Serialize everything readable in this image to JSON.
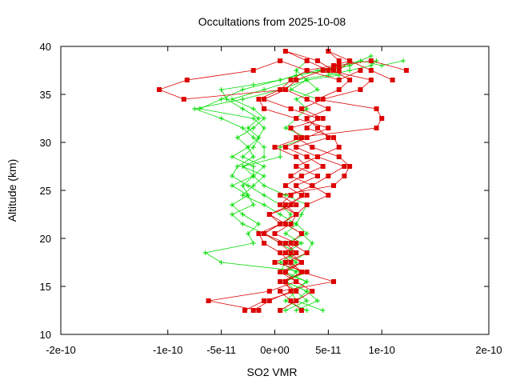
{
  "chart_data": {
    "type": "line",
    "title": "Occultations from 2025-10-08",
    "xlabel": "SO2 VMR",
    "ylabel": "Altitude (km)",
    "xlim": [
      -2e-10,
      2e-10
    ],
    "ylim": [
      10,
      40
    ],
    "xticks": [
      "-2e-10",
      "-1e-10",
      "-5e-11",
      "0e+00",
      "5e-11",
      "1e-10",
      "2e-10"
    ],
    "xtick_values": [
      -2e-10,
      -1e-10,
      -5e-11,
      0,
      5e-11,
      1e-10,
      2e-10
    ],
    "yticks": [
      "10",
      "15",
      "20",
      "25",
      "30",
      "35",
      "40"
    ],
    "ytick_values": [
      10,
      15,
      20,
      25,
      30,
      35,
      40
    ],
    "grid": false,
    "legend": "none",
    "series": [
      {
        "color": "#00dd00",
        "marker": "plus",
        "profiles": [
          {
            "x": [
              2e-11,
              4e-11,
              3e-11,
              1e-11,
              3e-11,
              -5e-11,
              -6.5e-11,
              -2e-11,
              -2.5e-11,
              -1.5e-11,
              -3e-11,
              -4e-11,
              -2.5e-11,
              -3e-11,
              -2e-11,
              -3e-11,
              5e-12,
              5e-12,
              3e-11,
              1e-11,
              2e-11,
              3e-11,
              2e-11,
              4e-11,
              3e-11,
              2e-11,
              3e-11,
              2e-11,
              3e-11,
              1.5e-11,
              4e-11
            ],
            "y": [
              12.5,
              13.5,
              14.5,
              15.5,
              16.5,
              17.5,
              18.5,
              19.5,
              20.5,
              21.5,
              22.5,
              23.5,
              24.5,
              25.5,
              26.5,
              27.5,
              28.5,
              29.5,
              30.5,
              31.5,
              32.5,
              33.5,
              34.5,
              35.5,
              36.5,
              37.5,
              38.5,
              37.5,
              36.5,
              35.5,
              34.5
            ]
          },
          {
            "x": [
              3e-11,
              1e-11,
              2e-11,
              3e-11,
              5e-12,
              1e-11,
              2e-11,
              5e-12,
              -1e-11,
              -3e-11,
              -4e-11,
              -2e-11,
              -2.5e-11,
              -4e-11,
              -2e-11,
              -2e-11,
              -4e-11,
              -2.5e-11,
              -1.5e-11,
              -1e-11,
              -2e-11,
              -7e-11,
              -5e-11,
              -3e-11,
              5e-12,
              4e-11,
              8e-11,
              1e-10,
              1.2e-10
            ],
            "y": [
              12.5,
              13.5,
              14.5,
              15.5,
              16.5,
              17.5,
              18.5,
              19.5,
              20.5,
              21.5,
              22.5,
              23.5,
              24.5,
              25.5,
              26.5,
              27.5,
              28.5,
              29.5,
              30.5,
              31.5,
              32.5,
              33.5,
              34.5,
              35.5,
              36.5,
              37.5,
              38.5,
              38.0,
              38.5
            ]
          },
          {
            "x": [
              4.5e-11,
              2e-11,
              3e-11,
              1e-11,
              2e-11,
              5e-12,
              2e-11,
              1e-11,
              3e-11,
              2e-11,
              5e-12,
              -1e-11,
              -3e-11,
              -2e-11,
              -1e-11,
              -3e-11,
              -1e-11,
              -1e-11,
              -2e-11,
              -3e-11,
              -5e-11,
              -7.5e-11,
              -3e-11,
              5e-12,
              3e-11,
              6e-11,
              4e-11,
              7e-11,
              9e-11
            ],
            "y": [
              12.5,
              13.5,
              14.5,
              15.5,
              16.5,
              17.5,
              18.5,
              19.5,
              20.5,
              21.5,
              22.5,
              23.5,
              24.5,
              25.5,
              26.5,
              27.5,
              28.5,
              29.5,
              30.5,
              31.5,
              32.5,
              33.5,
              34.5,
              35.5,
              36.5,
              37.0,
              37.5,
              38.0,
              39.0
            ]
          },
          {
            "x": [
              1e-11,
              3e-11,
              2e-11,
              1e-11,
              2.5e-11,
              1.5e-11,
              3e-11,
              3.5e-11,
              2.5e-11,
              1e-11,
              1.5e-11,
              5e-12,
              -1e-11,
              -2.5e-11,
              -4e-11,
              -3.5e-11,
              -2e-11,
              -2.5e-11,
              -3.5e-11,
              -2e-11,
              -1e-11,
              -2e-11,
              -4e-11,
              -1e-11,
              2e-11,
              5e-11,
              7e-11,
              9e-11,
              9.5e-11
            ],
            "y": [
              12.5,
              13.5,
              14.5,
              15.5,
              16.5,
              17.5,
              18.5,
              19.5,
              20.5,
              21.5,
              22.5,
              23.5,
              24.5,
              25.5,
              26.5,
              27.5,
              28.5,
              29.5,
              30.5,
              31.5,
              32.5,
              33.5,
              34.5,
              35.5,
              36.5,
              37.0,
              37.5,
              38.0,
              38.5
            ]
          },
          {
            "x": [
              5e-12,
              2e-11,
              1.5e-11,
              3e-11,
              1e-11,
              2e-11,
              1e-11,
              2.5e-11,
              1e-11,
              2e-11,
              2.5e-11,
              3e-11,
              1e-11,
              -1e-11,
              -2e-11,
              -1e-11,
              -3e-11,
              -2e-11,
              -1.5e-11,
              -2.5e-11,
              -1.5e-11,
              -3e-11,
              -4.5e-11,
              -5e-11,
              -2e-11,
              5e-12,
              2e-11,
              5e-11,
              7e-11
            ],
            "y": [
              12.5,
              13.5,
              14.5,
              15.5,
              16.5,
              17.5,
              18.5,
              19.5,
              20.5,
              21.5,
              22.5,
              23.5,
              24.5,
              25.5,
              26.5,
              27.5,
              28.5,
              29.5,
              30.5,
              31.5,
              32.5,
              33.5,
              34.5,
              35.5,
              36.0,
              36.5,
              37.0,
              37.5,
              38.0
            ]
          }
        ]
      },
      {
        "color": "#dd0000",
        "marker": "square",
        "profiles": [
          {
            "x": [
              -2.8e-11,
              -1e-11,
              2e-11,
              5e-12,
              3e-11,
              0,
              2e-11,
              1e-11,
              -1e-11,
              5e-12,
              2e-11,
              1e-11,
              3e-11,
              2e-11,
              4e-11,
              2e-11,
              4e-11,
              2e-11,
              5e-11,
              4e-11,
              3e-11,
              5e-11,
              3e-11,
              1e-11,
              -8.5e-11,
              -1.08e-10,
              -8.2e-11,
              -2e-11,
              5e-12,
              3e-11,
              6e-11,
              8e-11
            ],
            "y": [
              12.5,
              13.5,
              14.5,
              15.5,
              16.5,
              17.5,
              18.5,
              19.5,
              20.5,
              21.5,
              22.5,
              23.5,
              24.5,
              25.5,
              26.5,
              27.5,
              28.5,
              29.5,
              30.5,
              31.5,
              32.5,
              33.5,
              34.5,
              35.5,
              34.5,
              35.5,
              36.5,
              37.5,
              38.5,
              37.5,
              36.5,
              37.5
            ]
          },
          {
            "x": [
              -2e-11,
              -5e-12,
              1.5e-11,
              1e-11,
              2.5e-11,
              1.5e-11,
              5e-12,
              -1e-11,
              -1.5e-11,
              5e-12,
              -5e-12,
              1.5e-11,
              2.5e-11,
              1e-11,
              2.5e-11,
              4.5e-11,
              3e-11,
              1e-11,
              3e-11,
              5e-11,
              2e-11,
              -1e-11,
              -1.5e-11,
              5e-12,
              1.5e-11,
              3e-11,
              5.5e-11,
              7e-11,
              9e-11,
              1.1e-10
            ],
            "y": [
              12.5,
              13.5,
              14.5,
              15.5,
              16.5,
              17.5,
              18.5,
              19.5,
              20.5,
              21.5,
              22.5,
              23.5,
              24.5,
              25.5,
              26.5,
              27.5,
              28.5,
              29.5,
              30.5,
              31.5,
              32.5,
              33.5,
              34.5,
              35.5,
              36.5,
              37.5,
              38.0,
              38.5,
              37.5,
              36.5
            ]
          },
          {
            "x": [
              -1.5e-11,
              -6.2e-11,
              -5e-12,
              2e-11,
              5e-12,
              2.5e-11,
              1e-11,
              2e-11,
              0,
              1.5e-11,
              2e-11,
              5e-12,
              1.5e-11,
              3.5e-11,
              5e-11,
              6.5e-11,
              4e-11,
              6e-11,
              5.5e-11,
              3e-11,
              4e-11,
              1.5e-11,
              -1e-11,
              1e-11,
              2e-11,
              4.5e-11,
              6e-11,
              9e-11,
              1.23e-10
            ],
            "y": [
              12.5,
              13.5,
              14.5,
              15.5,
              16.5,
              17.5,
              18.5,
              19.5,
              20.5,
              21.5,
              22.5,
              23.5,
              24.5,
              25.5,
              26.5,
              27.5,
              28.5,
              29.5,
              30.5,
              31.5,
              32.5,
              33.5,
              34.5,
              35.5,
              36.5,
              37.5,
              38.0,
              38.5,
              37.5
            ]
          },
          {
            "x": [
              5e-12,
              2e-11,
              3.5e-11,
              2e-11,
              1e-11,
              2.5e-11,
              1.5e-11,
              5e-12,
              -1e-11,
              5e-12,
              2e-11,
              3e-11,
              5e-11,
              3.5e-11,
              1.5e-11,
              3e-11,
              2e-11,
              0,
              2.5e-11,
              1.5e-11,
              4.5e-11,
              2.5e-11,
              4.5e-11,
              8e-11,
              9e-11,
              5e-11,
              3e-11,
              1e-11,
              4e-11,
              5.5e-11
            ],
            "y": [
              12.5,
              13.5,
              14.5,
              15.5,
              16.5,
              17.5,
              18.5,
              19.5,
              20.5,
              21.5,
              22.5,
              23.5,
              24.5,
              25.5,
              26.5,
              27.5,
              28.5,
              29.5,
              30.5,
              31.5,
              32.5,
              33.5,
              34.5,
              35.5,
              36.5,
              37.5,
              38.5,
              39.5,
              38.5,
              37.5
            ]
          },
          {
            "x": [
              2.5e-11,
              1.5e-11,
              5e-12,
              5.5e-11,
              2.5e-11,
              1e-11,
              3e-11,
              1.5e-11,
              2.5e-11,
              1e-11,
              -5e-12,
              2e-11,
              5e-12,
              5.5e-11,
              6.5e-11,
              7e-11,
              6e-11,
              3.5e-11,
              2e-11,
              9.5e-11,
              1e-10,
              9.5e-11,
              4e-11,
              6e-11,
              7e-11,
              5.5e-11,
              6e-11,
              5e-11,
              7e-11,
              6e-11
            ],
            "y": [
              12.5,
              13.5,
              14.5,
              15.5,
              16.5,
              17.5,
              18.5,
              19.5,
              20.5,
              21.5,
              22.5,
              23.5,
              24.5,
              25.5,
              26.5,
              27.5,
              28.5,
              29.5,
              30.5,
              31.5,
              32.5,
              33.5,
              34.5,
              35.5,
              36.5,
              37.5,
              38.5,
              39.5,
              38.5,
              37.5
            ]
          }
        ]
      }
    ]
  }
}
